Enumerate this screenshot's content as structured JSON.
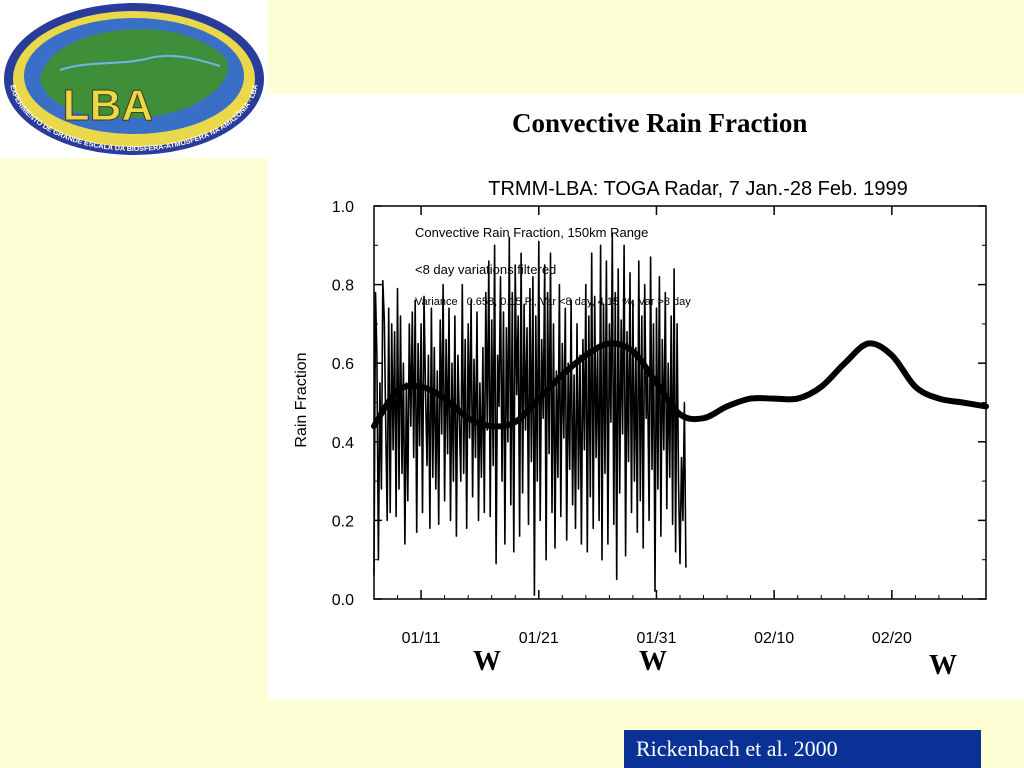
{
  "slide": {
    "title": "Convective Rain Fraction",
    "citation": "Rickenbach et al. 2000",
    "wet_markers": [
      "W",
      "W",
      "W"
    ],
    "background_color": "#ffffd5",
    "citation_bg_color": "#0a3296"
  },
  "logo": {
    "text": "LBA",
    "ring_text": "EXPERIMENTO DE GRANDE ESCALA DA BIOSFERA-ATMOSFERA NA AMAZÔNIA - LBA",
    "colors": {
      "ring": "#2a3c9a",
      "inner": "#3f8f3a",
      "text": "#e8d84a",
      "sea": "#3a6fc8"
    }
  },
  "chart_data": {
    "type": "line",
    "title": "TRMM-LBA: TOGA Radar, 7 Jan.-28 Feb. 1999",
    "xlabel": "",
    "ylabel": "Rain Fraction",
    "ylim": [
      0.0,
      1.0
    ],
    "yticks": [
      "0.0",
      "0.2",
      "0.4",
      "0.6",
      "0.8",
      "1.0"
    ],
    "xlim": [
      "1999-01-07",
      "1999-02-28"
    ],
    "xticks": [
      {
        "date": "1999-01-11",
        "label": "01/11"
      },
      {
        "date": "1999-01-21",
        "label": "01/21"
      },
      {
        "date": "1999-01-31",
        "label": "01/31"
      },
      {
        "date": "1999-02-10",
        "label": "02/10"
      },
      {
        "date": "1999-02-20",
        "label": "02/20"
      }
    ],
    "legend_lines": [
      "Convective Rain Fraction, 150km Range",
      "<8 day variations filtered",
      "Variance | 0.658, 0.15 P., Var <8 day, 4.15 %, Var >8 day"
    ],
    "grid": false,
    "series": [
      {
        "name": "",
        "style": "thick-smoothed",
        "x": [
          "1999-01-07",
          "1999-01-09",
          "1999-01-11",
          "1999-01-13",
          "1999-01-15",
          "1999-01-17",
          "1999-01-19",
          "1999-01-21",
          "1999-01-23",
          "1999-01-25",
          "1999-01-27",
          "1999-01-29",
          "1999-01-31",
          "1999-02-02",
          "1999-02-04",
          "1999-02-06",
          "1999-02-08",
          "1999-02-10",
          "1999-02-12",
          "1999-02-14",
          "1999-02-16",
          "1999-02-18",
          "1999-02-20",
          "1999-02-22",
          "1999-02-24",
          "1999-02-26",
          "1999-02-28"
        ],
        "y": [
          0.44,
          0.53,
          0.54,
          0.51,
          0.46,
          0.44,
          0.45,
          0.51,
          0.57,
          0.62,
          0.65,
          0.63,
          0.55,
          0.47,
          0.46,
          0.49,
          0.51,
          0.51,
          0.51,
          0.54,
          0.6,
          0.65,
          0.62,
          0.54,
          0.51,
          0.5,
          0.49
        ]
      },
      {
        "name": "",
        "style": "thin-raw",
        "x_start": "1999-01-07",
        "step_hours": 3,
        "y": [
          0.06,
          0.78,
          0.62,
          0.1,
          0.55,
          0.28,
          0.81,
          0.71,
          0.43,
          0.2,
          0.74,
          0.22,
          0.7,
          0.38,
          0.68,
          0.21,
          0.79,
          0.28,
          0.72,
          0.32,
          0.6,
          0.14,
          0.55,
          0.25,
          0.7,
          0.44,
          0.73,
          0.36,
          0.76,
          0.17,
          0.65,
          0.39,
          0.7,
          0.22,
          0.77,
          0.53,
          0.34,
          0.62,
          0.18,
          0.74,
          0.31,
          0.64,
          0.28,
          0.58,
          0.19,
          0.71,
          0.42,
          0.8,
          0.25,
          0.66,
          0.37,
          0.74,
          0.2,
          0.6,
          0.3,
          0.72,
          0.16,
          0.62,
          0.46,
          0.3,
          0.8,
          0.32,
          0.66,
          0.18,
          0.7,
          0.41,
          0.76,
          0.26,
          0.61,
          0.36,
          0.73,
          0.2,
          0.55,
          0.31,
          0.64,
          0.22,
          0.78,
          0.43,
          0.86,
          0.21,
          0.71,
          0.34,
          0.9,
          0.09,
          0.62,
          0.49,
          0.82,
          0.3,
          0.73,
          0.14,
          0.69,
          0.4,
          0.92,
          0.24,
          0.78,
          0.12,
          0.85,
          0.52,
          0.72,
          0.16,
          0.88,
          0.27,
          0.75,
          0.43,
          0.69,
          0.19,
          0.79,
          0.35,
          0.82,
          0.01,
          0.72,
          0.3,
          0.91,
          0.2,
          0.66,
          0.46,
          0.85,
          0.1,
          0.78,
          0.37,
          0.88,
          0.22,
          0.7,
          0.13,
          0.58,
          0.31,
          0.8,
          0.21,
          0.65,
          0.41,
          0.74,
          0.15,
          0.6,
          0.33,
          0.76,
          0.24,
          0.57,
          0.18,
          0.7,
          0.28,
          0.62,
          0.14,
          0.66,
          0.38,
          0.8,
          0.12,
          0.72,
          0.26,
          0.88,
          0.18,
          0.77,
          0.36,
          0.64,
          0.2,
          0.9,
          0.1,
          0.75,
          0.32,
          0.86,
          0.14,
          0.7,
          0.45,
          0.93,
          0.19,
          0.78,
          0.05,
          0.84,
          0.27,
          0.71,
          0.42,
          0.9,
          0.11,
          0.68,
          0.35,
          0.83,
          0.22,
          0.76,
          0.3,
          0.64,
          0.17,
          0.86,
          0.25,
          0.72,
          0.13,
          0.8,
          0.46,
          0.58,
          0.2,
          0.87,
          0.33,
          0.7,
          0.02,
          0.74,
          0.28,
          0.82,
          0.16,
          0.66,
          0.38,
          0.78,
          0.23,
          0.6,
          0.31,
          0.72,
          0.19,
          0.84,
          0.12,
          0.7,
          0.3,
          0.09,
          0.36,
          0.2,
          0.5,
          0.08
        ]
      }
    ]
  }
}
